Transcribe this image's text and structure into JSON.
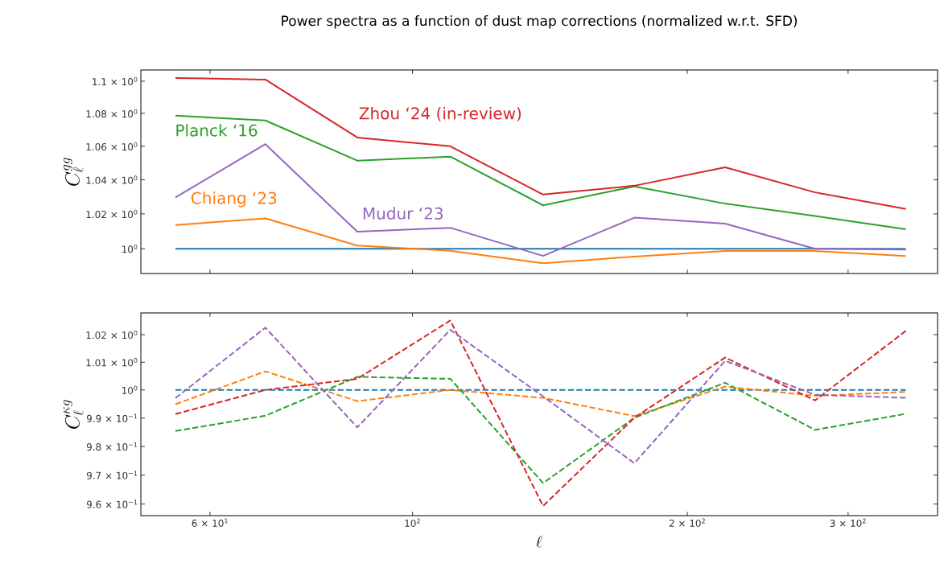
{
  "chart_data": [
    {
      "type": "line",
      "title": "Power spectra as a function of dust map corrections (normalized w.r.t. SFD)",
      "ylabel": "C_\\ell^{gg}",
      "log": "xy",
      "line_style": "solid",
      "tick_labels": "y",
      "x": [
        55,
        69,
        87,
        110,
        139,
        175,
        220,
        276,
        347
      ],
      "xlim": [
        50.4,
        376
      ],
      "xticks": [
        {
          "value": 60,
          "label": null
        },
        {
          "value": 100,
          "label": null
        },
        {
          "value": 200,
          "label": null
        },
        {
          "value": 300,
          "label": null
        }
      ],
      "ylim": [
        0.986,
        1.107
      ],
      "yticks": [
        {
          "value": 1.0,
          "label": "10$^{0}$"
        },
        {
          "value": 1.02,
          "label": "1.02 × 10$^{0}$"
        },
        {
          "value": 1.04,
          "label": "1.04 × 10$^{0}$"
        },
        {
          "value": 1.06,
          "label": "1.06 × 10$^{0}$"
        },
        {
          "value": 1.08,
          "label": "1.08 × 10$^{0}$"
        },
        {
          "value": 1.1,
          "label": "1.1 × 10$^{0}$"
        }
      ],
      "series": [
        {
          "color": "#1f77b4",
          "values": [
            1.0,
            1.0,
            1.0,
            1.0,
            1.0,
            1.0,
            1.0,
            1.0,
            1.0
          ]
        },
        {
          "name": "Chiang ‘23",
          "color": "#ff7f0e",
          "values": [
            1.0136,
            1.0174,
            1.0018,
            0.9989,
            0.9918,
            0.9956,
            0.9987,
            0.9987,
            0.9959
          ]
        },
        {
          "name": "Planck ‘16",
          "color": "#2ca02c",
          "values": [
            1.0786,
            1.0757,
            1.0514,
            1.0538,
            1.025,
            1.0361,
            1.026,
            1.0188,
            1.0111
          ]
        },
        {
          "name": "Zhou ‘24 (in-review)",
          "color": "#d62728",
          "values": [
            1.102,
            1.101,
            1.0653,
            1.06,
            1.0313,
            1.0365,
            1.0474,
            1.0326,
            1.0229
          ]
        },
        {
          "name": "Mudur ‘23",
          "color": "#9467bd",
          "values": [
            1.0296,
            1.0613,
            1.0097,
            1.012,
            0.9959,
            1.0178,
            1.0144,
            1.0,
            0.9995
          ]
        }
      ]
    },
    {
      "type": "line",
      "ylabel": "C_\\ell^{\\kappa g}",
      "xlabel": "\\ell",
      "log": "xy",
      "line_style": "dashed",
      "x": [
        55,
        69,
        87,
        110,
        139,
        175,
        220,
        276,
        347
      ],
      "xlim": [
        50.4,
        376
      ],
      "xticks": [
        {
          "value": 60,
          "label": "6 × 10$^{1}$"
        },
        {
          "value": 100,
          "label": "10$^{2}$"
        },
        {
          "value": 200,
          "label": "2 × 10$^{2}$"
        },
        {
          "value": 300,
          "label": "3 × 10$^{2}$"
        }
      ],
      "ylim": [
        0.956,
        1.028
      ],
      "yticks": [
        {
          "value": 0.96,
          "label": "9.6 × 10$^{−1}$"
        },
        {
          "value": 0.97,
          "label": "9.7 × 10$^{−1}$"
        },
        {
          "value": 0.98,
          "label": "9.8 × 10$^{−1}$"
        },
        {
          "value": 0.99,
          "label": "9.9 × 10$^{−1}$"
        },
        {
          "value": 1.0,
          "label": "10$^{0}$"
        },
        {
          "value": 1.01,
          "label": "1.01 × 10$^{0}$"
        },
        {
          "value": 1.02,
          "label": "1.02 × 10$^{0}$"
        }
      ],
      "series": [
        {
          "color": "#1f77b4",
          "values": [
            1.0,
            1.0,
            1.0,
            1.0,
            1.0,
            1.0,
            1.0,
            1.0,
            1.0
          ]
        },
        {
          "color": "#ff7f0e",
          "values": [
            0.9949,
            1.0067,
            0.996,
            1.0,
            0.9972,
            0.9907,
            1.0012,
            0.9979,
            0.9993
          ]
        },
        {
          "color": "#2ca02c",
          "values": [
            0.9854,
            0.9908,
            1.0047,
            1.004,
            0.9672,
            0.9901,
            1.0026,
            0.9858,
            0.9915
          ]
        },
        {
          "color": "#d62728",
          "values": [
            0.9914,
            1.0,
            1.004,
            1.0252,
            0.9593,
            0.9901,
            1.0117,
            0.9963,
            1.0214
          ]
        },
        {
          "color": "#9467bd",
          "values": [
            0.9971,
            1.0226,
            0.9867,
            1.0218,
            0.9977,
            0.9741,
            1.0105,
            0.9983,
            0.9972
          ]
        }
      ]
    }
  ]
}
